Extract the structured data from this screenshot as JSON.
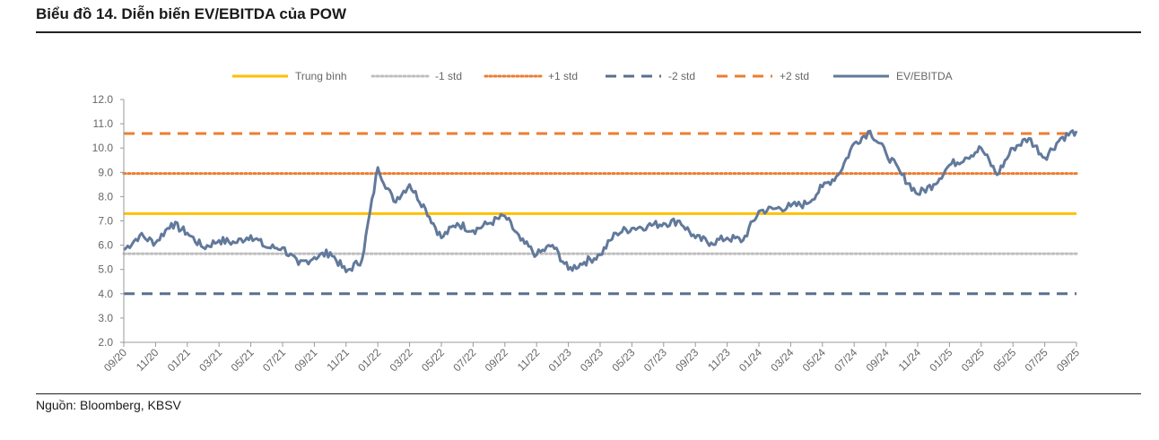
{
  "title": "Biểu đồ 14. Diễn biến EV/EBITDA của POW",
  "source": "Nguồn: Bloomberg, KBSV",
  "chart_data": {
    "type": "line",
    "ylim": [
      2.0,
      12.0
    ],
    "y_ticks": [
      "2.0",
      "3.0",
      "4.0",
      "5.0",
      "6.0",
      "7.0",
      "8.0",
      "9.0",
      "10.0",
      "11.0",
      "12.0"
    ],
    "x_ticks": [
      "09/20",
      "11/20",
      "01/21",
      "03/21",
      "05/21",
      "07/21",
      "09/21",
      "11/21",
      "01/22",
      "03/22",
      "05/22",
      "07/22",
      "09/22",
      "11/22",
      "01/23",
      "03/23",
      "05/23",
      "07/23",
      "09/23",
      "11/23",
      "01/24",
      "03/24",
      "05/24",
      "07/24",
      "09/24",
      "11/24",
      "01/25",
      "03/25",
      "05/25",
      "07/25",
      "09/25"
    ],
    "legend_position": "top",
    "reference_lines": [
      {
        "name": "Trung bình",
        "value": 7.3,
        "color": "#FFC000",
        "style": "solid"
      },
      {
        "name": "-1 std",
        "value": 5.65,
        "color": "#BFBFBF",
        "style": "dotted"
      },
      {
        "name": "+1 std",
        "value": 8.95,
        "color": "#ED7D31",
        "style": "dotted"
      },
      {
        "name": "-2 std",
        "value": 4.0,
        "color": "#5B6F8E",
        "style": "dashed"
      },
      {
        "name": "+2 std",
        "value": 10.6,
        "color": "#ED7D31",
        "style": "dashed"
      }
    ],
    "series": [
      {
        "name": "EV/EBITDA",
        "color": "#61799B",
        "x": [
          "09/2020",
          "10/2020",
          "11/2020",
          "12/2020",
          "01/2021",
          "02/2021",
          "03/2021",
          "04/2021",
          "05/2021",
          "06/2021",
          "07/2021",
          "08/2021",
          "09/2021",
          "10/2021",
          "11/2021",
          "12/2021",
          "01/2022",
          "02/2022",
          "03/2022",
          "04/2022",
          "05/2022",
          "06/2022",
          "07/2022",
          "08/2022",
          "09/2022",
          "10/2022",
          "11/2022",
          "12/2022",
          "01/2023",
          "02/2023",
          "03/2023",
          "04/2023",
          "05/2023",
          "06/2023",
          "07/2023",
          "08/2023",
          "09/2023",
          "10/2023",
          "11/2023",
          "12/2023",
          "01/2024",
          "02/2024",
          "03/2024",
          "04/2024",
          "05/2024",
          "06/2024",
          "07/2024",
          "08/2024",
          "09/2024",
          "10/2024",
          "11/2024",
          "12/2024",
          "01/2025",
          "02/2025",
          "03/2025",
          "04/2025",
          "05/2025",
          "06/2025",
          "07/2025",
          "08/2025",
          "09/2025"
        ],
        "values": [
          5.8,
          6.4,
          6.1,
          6.9,
          6.5,
          5.9,
          6.2,
          6.1,
          6.4,
          5.9,
          5.9,
          5.2,
          5.5,
          5.7,
          4.9,
          5.4,
          9.2,
          7.8,
          8.5,
          7.5,
          6.3,
          6.9,
          6.6,
          6.9,
          7.2,
          6.2,
          5.6,
          6.0,
          5.0,
          5.3,
          5.6,
          6.5,
          6.7,
          6.8,
          6.9,
          7.0,
          6.3,
          6.1,
          6.3,
          6.2,
          7.4,
          7.5,
          7.6,
          7.7,
          8.4,
          8.9,
          10.2,
          10.7,
          9.8,
          8.9,
          8.1,
          8.5,
          9.3,
          9.6,
          10.0,
          8.9,
          10.0,
          10.4,
          9.6,
          10.4,
          10.7
        ]
      }
    ]
  }
}
